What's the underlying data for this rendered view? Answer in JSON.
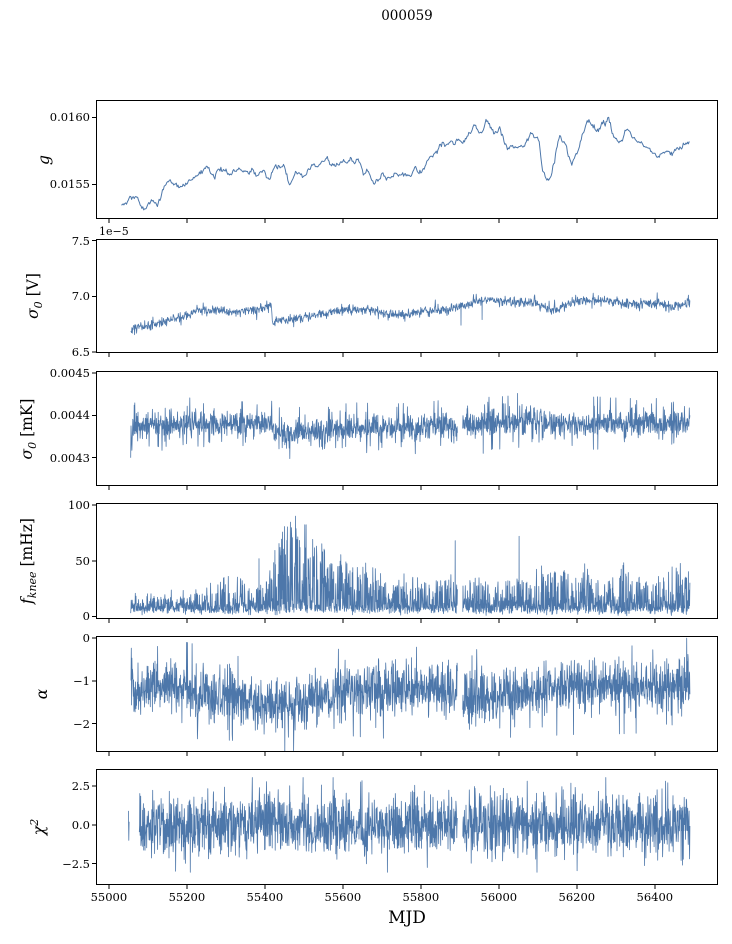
{
  "title": "000059",
  "x_axis": {
    "label": "MJD",
    "tick_values": [
      55000,
      55200,
      55400,
      55600,
      55800,
      56000,
      56200,
      56400
    ],
    "tick_labels": [
      "55000",
      "55200",
      "55400",
      "55600",
      "55800",
      "56000",
      "56200",
      "56400"
    ],
    "xlim": [
      54967,
      56562
    ],
    "data_range": [
      55032,
      56490
    ]
  },
  "style": {
    "line_color": "#4d77aa",
    "axis_color": "#000000",
    "background": "#ffffff"
  },
  "chart_data": [
    {
      "id": "g",
      "type": "line",
      "ylabel": {
        "sym": "g",
        "sub": "",
        "sup": "",
        "post": ""
      },
      "ytick_values": [
        0.016,
        0.0155
      ],
      "ytick_labels": [
        "0.0160",
        "0.0155"
      ],
      "ylim": [
        0.015241,
        0.016129
      ],
      "offset_text": "",
      "gen": {
        "style": "smooth",
        "seed": 41,
        "step": 2.2,
        "x_start": 55032,
        "noise": 4.5e-06,
        "wiggle": 1.1e-05,
        "damp": 0.95
      },
      "trend": [
        [
          55032,
          0.01533
        ],
        [
          55055,
          0.01543
        ],
        [
          55075,
          0.01536
        ],
        [
          55092,
          0.01529
        ],
        [
          55110,
          0.01537
        ],
        [
          55125,
          0.01533
        ],
        [
          55145,
          0.01546
        ],
        [
          55165,
          0.01549
        ],
        [
          55185,
          0.01547
        ],
        [
          55205,
          0.01556
        ],
        [
          55230,
          0.01554
        ],
        [
          55250,
          0.01562
        ],
        [
          55268,
          0.01554
        ],
        [
          55288,
          0.01561
        ],
        [
          55308,
          0.01556
        ],
        [
          55330,
          0.01559
        ],
        [
          55355,
          0.01559
        ],
        [
          55378,
          0.01561
        ],
        [
          55398,
          0.01565
        ],
        [
          55413,
          0.01552
        ],
        [
          55428,
          0.01562
        ],
        [
          55448,
          0.0156
        ],
        [
          55462,
          0.01551
        ],
        [
          55478,
          0.01557
        ],
        [
          55495,
          0.01552
        ],
        [
          55515,
          0.01561
        ],
        [
          55535,
          0.01565
        ],
        [
          55558,
          0.01569
        ],
        [
          55580,
          0.01568
        ],
        [
          55600,
          0.01571
        ],
        [
          55622,
          0.0157
        ],
        [
          55640,
          0.01576
        ],
        [
          55652,
          0.01567
        ],
        [
          55666,
          0.01574
        ],
        [
          55682,
          0.01557
        ],
        [
          55700,
          0.01561
        ],
        [
          55725,
          0.0156
        ],
        [
          55750,
          0.01559
        ],
        [
          55768,
          0.01557
        ],
        [
          55785,
          0.01567
        ],
        [
          55802,
          0.01562
        ],
        [
          55822,
          0.01571
        ],
        [
          55842,
          0.0157
        ],
        [
          55862,
          0.01577
        ],
        [
          55882,
          0.01584
        ],
        [
          55902,
          0.01581
        ],
        [
          55922,
          0.01588
        ],
        [
          55937,
          0.01594
        ],
        [
          55952,
          0.0159
        ],
        [
          55967,
          0.01596
        ],
        [
          55982,
          0.01589
        ],
        [
          56002,
          0.01587
        ],
        [
          56022,
          0.01575
        ],
        [
          56042,
          0.01582
        ],
        [
          56062,
          0.0158
        ],
        [
          56082,
          0.01585
        ],
        [
          56102,
          0.01574
        ],
        [
          56114,
          0.01553
        ],
        [
          56128,
          0.0155
        ],
        [
          56142,
          0.01567
        ],
        [
          56157,
          0.0159
        ],
        [
          56172,
          0.01582
        ],
        [
          56187,
          0.01565
        ],
        [
          56202,
          0.01576
        ],
        [
          56217,
          0.01593
        ],
        [
          56232,
          0.01597
        ],
        [
          56250,
          0.01594
        ],
        [
          56266,
          0.01598
        ],
        [
          56282,
          0.016
        ],
        [
          56297,
          0.01587
        ],
        [
          56312,
          0.01582
        ],
        [
          56327,
          0.01591
        ],
        [
          56342,
          0.01585
        ],
        [
          56362,
          0.01582
        ],
        [
          56382,
          0.01584
        ],
        [
          56402,
          0.0158
        ],
        [
          56422,
          0.0158
        ],
        [
          56442,
          0.01577
        ],
        [
          56462,
          0.01579
        ],
        [
          56490,
          0.01578
        ]
      ],
      "gaps": [],
      "spikes": []
    },
    {
      "id": "sigma0_V",
      "type": "line",
      "ylabel": {
        "sym": "σ",
        "sub": "0",
        "sup": "",
        "post": " [V]"
      },
      "ytick_values": [
        7.5,
        7.0,
        6.5
      ],
      "ytick_labels": [
        "7.5",
        "7.0",
        "6.5"
      ],
      "ylim": [
        6.49,
        7.515
      ],
      "unit_scale": "1e-5",
      "offset_text": "1e−5",
      "gen": {
        "style": "band",
        "seed": 7,
        "step": 1.0,
        "x_start": 55056,
        "sigma": 0.02,
        "cube": 0.0035,
        "clip": 0.095,
        "tail_p": 0.012,
        "tail_mult": 1.8
      },
      "trend": [
        [
          55056,
          6.69
        ],
        [
          55080,
          6.72
        ],
        [
          55110,
          6.74
        ],
        [
          55140,
          6.77
        ],
        [
          55170,
          6.8
        ],
        [
          55200,
          6.83
        ],
        [
          55228,
          6.88
        ],
        [
          55255,
          6.88
        ],
        [
          55285,
          6.87
        ],
        [
          55315,
          6.86
        ],
        [
          55345,
          6.87
        ],
        [
          55375,
          6.88
        ],
        [
          55400,
          6.91
        ],
        [
          55416,
          6.93
        ],
        [
          55420,
          6.77
        ],
        [
          55450,
          6.79
        ],
        [
          55480,
          6.8
        ],
        [
          55510,
          6.82
        ],
        [
          55540,
          6.84
        ],
        [
          55570,
          6.86
        ],
        [
          55600,
          6.88
        ],
        [
          55630,
          6.88
        ],
        [
          55658,
          6.88
        ],
        [
          55688,
          6.87
        ],
        [
          55712,
          6.84
        ],
        [
          55740,
          6.83
        ],
        [
          55770,
          6.84
        ],
        [
          55800,
          6.86
        ],
        [
          55830,
          6.87
        ],
        [
          55860,
          6.88
        ],
        [
          55890,
          6.9
        ],
        [
          55912,
          6.92
        ],
        [
          55940,
          6.95
        ],
        [
          55970,
          6.97
        ],
        [
          56000,
          6.96
        ],
        [
          56030,
          6.95
        ],
        [
          56060,
          6.94
        ],
        [
          56090,
          6.94
        ],
        [
          56118,
          6.91
        ],
        [
          56142,
          6.87
        ],
        [
          56168,
          6.91
        ],
        [
          56195,
          6.95
        ],
        [
          56225,
          6.97
        ],
        [
          56255,
          6.96
        ],
        [
          56285,
          6.96
        ],
        [
          56315,
          6.94
        ],
        [
          56345,
          6.93
        ],
        [
          56375,
          6.94
        ],
        [
          56405,
          6.94
        ],
        [
          56435,
          6.91
        ],
        [
          56465,
          6.93
        ],
        [
          56490,
          6.94
        ]
      ],
      "gaps": [],
      "spikes": [
        [
          55903,
          6.74
        ],
        [
          55957,
          6.79
        ]
      ]
    },
    {
      "id": "sigma0_mK",
      "type": "line",
      "ylabel": {
        "sym": "σ",
        "sub": "0",
        "sup": "",
        "post": " [mK]"
      },
      "ytick_values": [
        0.0045,
        0.0044,
        0.0043
      ],
      "ytick_labels": [
        "0.0045",
        "0.0044",
        "0.0043"
      ],
      "ylim": [
        0.004233,
        0.004505
      ],
      "offset_text": "",
      "gen": {
        "style": "band",
        "seed": 13,
        "step": 0.75,
        "x_start": 55056,
        "sigma": 1.35e-05,
        "cube": 4e-06,
        "clip": 6.2e-05,
        "tail_p": 0.02,
        "tail_mult": 1.8
      },
      "trend": [
        [
          55056,
          0.004362
        ],
        [
          55075,
          0.004372
        ],
        [
          55100,
          0.004377
        ],
        [
          55150,
          0.00438
        ],
        [
          55200,
          0.00438
        ],
        [
          55250,
          0.004382
        ],
        [
          55300,
          0.004379
        ],
        [
          55350,
          0.00438
        ],
        [
          55400,
          0.004382
        ],
        [
          55417,
          0.004382
        ],
        [
          55421,
          0.004357
        ],
        [
          55460,
          0.004355
        ],
        [
          55500,
          0.004358
        ],
        [
          55550,
          0.004361
        ],
        [
          55600,
          0.004365
        ],
        [
          55650,
          0.004369
        ],
        [
          55700,
          0.004372
        ],
        [
          55750,
          0.00437
        ],
        [
          55800,
          0.004372
        ],
        [
          55850,
          0.004373
        ],
        [
          55893,
          0.004375
        ],
        [
          55908,
          0.004376
        ],
        [
          55950,
          0.00438
        ],
        [
          56000,
          0.004382
        ],
        [
          56050,
          0.004386
        ],
        [
          56100,
          0.004388
        ],
        [
          56150,
          0.004383
        ],
        [
          56200,
          0.004379
        ],
        [
          56250,
          0.004382
        ],
        [
          56300,
          0.00438
        ],
        [
          56350,
          0.004382
        ],
        [
          56400,
          0.004378
        ],
        [
          56450,
          0.00438
        ],
        [
          56490,
          0.004384
        ]
      ],
      "gaps": [
        [
          55894,
          55907
        ]
      ],
      "spikes": [
        [
          55960,
          0.00431
        ],
        [
          56048,
          0.004452
        ]
      ]
    },
    {
      "id": "f_knee",
      "type": "line",
      "ylabel": {
        "sym": "f",
        "sub": "knee",
        "sup": "",
        "post": " [mHz]"
      },
      "ytick_values": [
        100,
        50,
        0
      ],
      "ytick_labels": [
        "100",
        "50",
        "0"
      ],
      "ylim": [
        -2.3,
        101.9
      ],
      "offset_text": "",
      "gen": {
        "style": "grass",
        "seed": 23,
        "step": 0.65,
        "x_start": 55056,
        "base_mean": 6,
        "base_sig": 2.2,
        "pow": 3.2,
        "amp_scale": 1.08
      },
      "trend": [
        [
          55056,
          14
        ],
        [
          55100,
          12
        ],
        [
          55150,
          12
        ],
        [
          55200,
          15
        ],
        [
          55240,
          18
        ],
        [
          55280,
          26
        ],
        [
          55310,
          30
        ],
        [
          55340,
          26
        ],
        [
          55370,
          20
        ],
        [
          55400,
          22
        ],
        [
          55418,
          40
        ],
        [
          55432,
          75
        ],
        [
          55448,
          92
        ],
        [
          55465,
          96
        ],
        [
          55480,
          90
        ],
        [
          55498,
          78
        ],
        [
          55515,
          65
        ],
        [
          55532,
          55
        ],
        [
          55550,
          62
        ],
        [
          55568,
          48
        ],
        [
          55585,
          42
        ],
        [
          55605,
          55
        ],
        [
          55625,
          38
        ],
        [
          55645,
          33
        ],
        [
          55665,
          42
        ],
        [
          55685,
          33
        ],
        [
          55705,
          28
        ],
        [
          55725,
          26
        ],
        [
          55745,
          26
        ],
        [
          55765,
          32
        ],
        [
          55785,
          28
        ],
        [
          55805,
          26
        ],
        [
          55825,
          23
        ],
        [
          55845,
          27
        ],
        [
          55865,
          23
        ],
        [
          55885,
          30
        ],
        [
          55910,
          26
        ],
        [
          55930,
          23
        ],
        [
          55950,
          34
        ],
        [
          55970,
          27
        ],
        [
          55990,
          23
        ],
        [
          56010,
          27
        ],
        [
          56030,
          26
        ],
        [
          56060,
          28
        ],
        [
          56080,
          31
        ],
        [
          56100,
          38
        ],
        [
          56120,
          34
        ],
        [
          56140,
          31
        ],
        [
          56160,
          38
        ],
        [
          56180,
          34
        ],
        [
          56200,
          28
        ],
        [
          56220,
          38
        ],
        [
          56240,
          34
        ],
        [
          56260,
          27
        ],
        [
          56280,
          23
        ],
        [
          56300,
          34
        ],
        [
          56320,
          38
        ],
        [
          56340,
          34
        ],
        [
          56360,
          31
        ],
        [
          56380,
          27
        ],
        [
          56400,
          26
        ],
        [
          56420,
          38
        ],
        [
          56440,
          42
        ],
        [
          56460,
          40
        ],
        [
          56480,
          36
        ],
        [
          56490,
          33
        ]
      ],
      "gaps": [
        [
          55894,
          55907
        ]
      ],
      "spikes": [
        [
          55385,
          52
        ],
        [
          55888,
          68
        ],
        [
          56052,
          72
        ]
      ]
    },
    {
      "id": "alpha",
      "type": "line",
      "ylabel": {
        "sym": "α",
        "sub": "",
        "sup": "",
        "post": ""
      },
      "ytick_values": [
        0,
        -1,
        -2
      ],
      "ytick_labels": [
        "0",
        "−1",
        "−2"
      ],
      "ylim": [
        -2.66,
        0.05
      ],
      "offset_text": "",
      "gen": {
        "style": "band",
        "seed": 31,
        "step": 0.75,
        "x_start": 55056,
        "sigma": 0.28,
        "cube": 0.055,
        "clip": 1.1,
        "tail_p": 0.015,
        "tail_mult": 1.6
      },
      "trend": [
        [
          55056,
          -1.12
        ],
        [
          55100,
          -1.13
        ],
        [
          55150,
          -1.16
        ],
        [
          55200,
          -1.2
        ],
        [
          55240,
          -1.28
        ],
        [
          55280,
          -1.33
        ],
        [
          55315,
          -1.28
        ],
        [
          55340,
          -1.42
        ],
        [
          55380,
          -1.5
        ],
        [
          55420,
          -1.55
        ],
        [
          55450,
          -1.58
        ],
        [
          55480,
          -1.55
        ],
        [
          55520,
          -1.48
        ],
        [
          55560,
          -1.38
        ],
        [
          55600,
          -1.25
        ],
        [
          55650,
          -1.2
        ],
        [
          55700,
          -1.24
        ],
        [
          55750,
          -1.2
        ],
        [
          55800,
          -1.19
        ],
        [
          55850,
          -1.15
        ],
        [
          55893,
          -1.14
        ],
        [
          55908,
          -1.32
        ],
        [
          55935,
          -1.38
        ],
        [
          55965,
          -1.33
        ],
        [
          56000,
          -1.25
        ],
        [
          56050,
          -1.2
        ],
        [
          56100,
          -1.19
        ],
        [
          56150,
          -1.17
        ],
        [
          56200,
          -1.15
        ],
        [
          56250,
          -1.14
        ],
        [
          56300,
          -1.14
        ],
        [
          56350,
          -1.12
        ],
        [
          56400,
          -1.12
        ],
        [
          56450,
          -1.11
        ],
        [
          56490,
          -1.1
        ]
      ],
      "gaps": [
        [
          55894,
          55907
        ]
      ],
      "spikes": []
    },
    {
      "id": "chi2",
      "type": "line",
      "ylabel": {
        "sym": "χ",
        "sub": "",
        "sup": "2",
        "post": ""
      },
      "ytick_values": [
        2.5,
        0.0,
        -2.5
      ],
      "ytick_labels": [
        "2.5",
        "0.0",
        "−2.5"
      ],
      "ylim": [
        -3.87,
        3.6
      ],
      "offset_text": "",
      "gen": {
        "style": "band",
        "seed": 57,
        "step": 0.7,
        "x_start": 55078,
        "sigma": 0.92,
        "cube": 0.1,
        "clip": 3.05,
        "tail_p": 0.01,
        "tail_mult": 1.5
      },
      "trend": [
        [
          55078,
          0
        ],
        [
          56490,
          0
        ]
      ],
      "gaps": [
        [
          55894,
          55907
        ]
      ],
      "spikes": [],
      "pre_segment": [
        [
          55050,
          0.9
        ],
        [
          55051,
          -1.0
        ],
        [
          55052,
          0.2
        ]
      ]
    }
  ]
}
